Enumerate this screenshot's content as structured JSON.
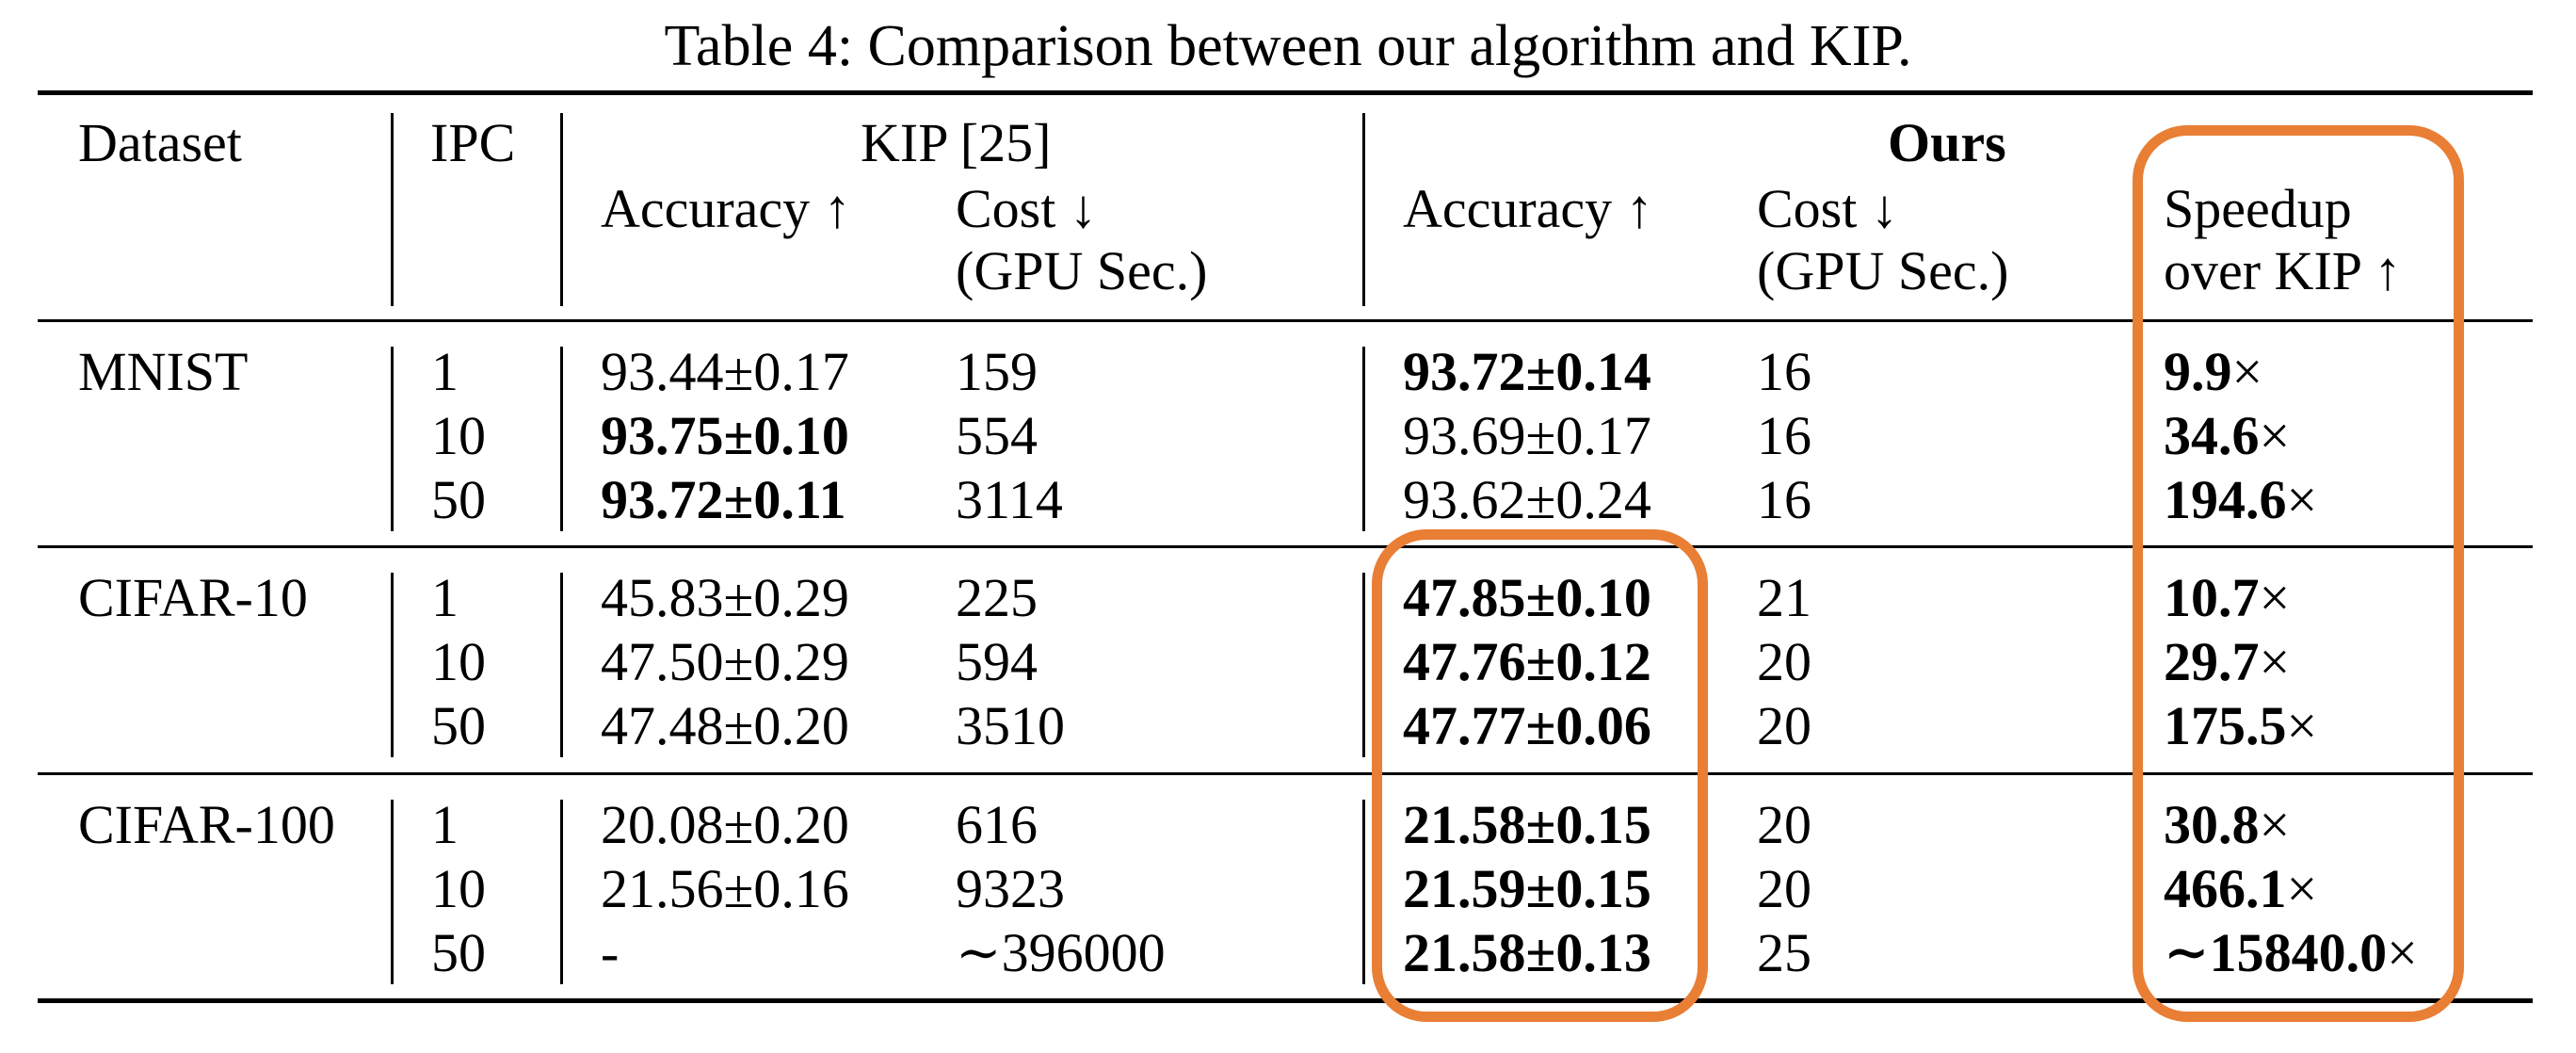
{
  "caption": "Table 4: Comparison between our algorithm and KIP.",
  "headers": {
    "dataset": "Dataset",
    "ipc": "IPC",
    "kip": "KIP [25]",
    "ours": "Ours",
    "kip_accuracy": "Accuracy ↑",
    "kip_cost_1": "Cost ↓",
    "kip_cost_2": "(GPU Sec.)",
    "ours_accuracy": "Accuracy ↑",
    "ours_cost_1": "Cost ↓",
    "ours_cost_2": "(GPU Sec.)",
    "speedup_1": "Speedup",
    "speedup_2": "over KIP ↑"
  },
  "groups": [
    {
      "dataset": "MNIST",
      "rows": [
        {
          "ipc": "1",
          "kip_acc": "93.44±0.17",
          "kip_acc_bold": false,
          "kip_cost": "159",
          "ours_acc": "93.72±0.14",
          "ours_acc_bold": true,
          "ours_cost": "16",
          "speedup_num": "9.9",
          "speedup_suffix": "×"
        },
        {
          "ipc": "10",
          "kip_acc": "93.75±0.10",
          "kip_acc_bold": true,
          "kip_cost": "554",
          "ours_acc": "93.69±0.17",
          "ours_acc_bold": false,
          "ours_cost": "16",
          "speedup_num": "34.6",
          "speedup_suffix": "×"
        },
        {
          "ipc": "50",
          "kip_acc": "93.72±0.11",
          "kip_acc_bold": true,
          "kip_cost": "3114",
          "ours_acc": "93.62±0.24",
          "ours_acc_bold": false,
          "ours_cost": "16",
          "speedup_num": "194.6",
          "speedup_suffix": "×"
        }
      ]
    },
    {
      "dataset": "CIFAR-10",
      "rows": [
        {
          "ipc": "1",
          "kip_acc": "45.83±0.29",
          "kip_acc_bold": false,
          "kip_cost": "225",
          "ours_acc": "47.85±0.10",
          "ours_acc_bold": true,
          "ours_cost": "21",
          "speedup_num": "10.7",
          "speedup_suffix": "×"
        },
        {
          "ipc": "10",
          "kip_acc": "47.50±0.29",
          "kip_acc_bold": false,
          "kip_cost": "594",
          "ours_acc": "47.76±0.12",
          "ours_acc_bold": true,
          "ours_cost": "20",
          "speedup_num": "29.7",
          "speedup_suffix": "×"
        },
        {
          "ipc": "50",
          "kip_acc": "47.48±0.20",
          "kip_acc_bold": false,
          "kip_cost": "3510",
          "ours_acc": "47.77±0.06",
          "ours_acc_bold": true,
          "ours_cost": "20",
          "speedup_num": "175.5",
          "speedup_suffix": "×"
        }
      ]
    },
    {
      "dataset": "CIFAR-100",
      "rows": [
        {
          "ipc": "1",
          "kip_acc": "20.08±0.20",
          "kip_acc_bold": false,
          "kip_cost": "616",
          "ours_acc": "21.58±0.15",
          "ours_acc_bold": true,
          "ours_cost": "20",
          "speedup_num": "30.8",
          "speedup_suffix": "×"
        },
        {
          "ipc": "10",
          "kip_acc": "21.56±0.16",
          "kip_acc_bold": false,
          "kip_cost": "9323",
          "ours_acc": "21.59±0.15",
          "ours_acc_bold": true,
          "ours_cost": "20",
          "speedup_num": "466.1",
          "speedup_suffix": "×"
        },
        {
          "ipc": "50",
          "kip_acc": "-",
          "kip_acc_bold": false,
          "kip_cost": "∼396000",
          "ours_acc": "21.58±0.13",
          "ours_acc_bold": true,
          "ours_cost": "25",
          "speedup_num": "∼15840.0",
          "speedup_suffix": "×"
        }
      ]
    }
  ],
  "highlight_color": "#e97e35"
}
